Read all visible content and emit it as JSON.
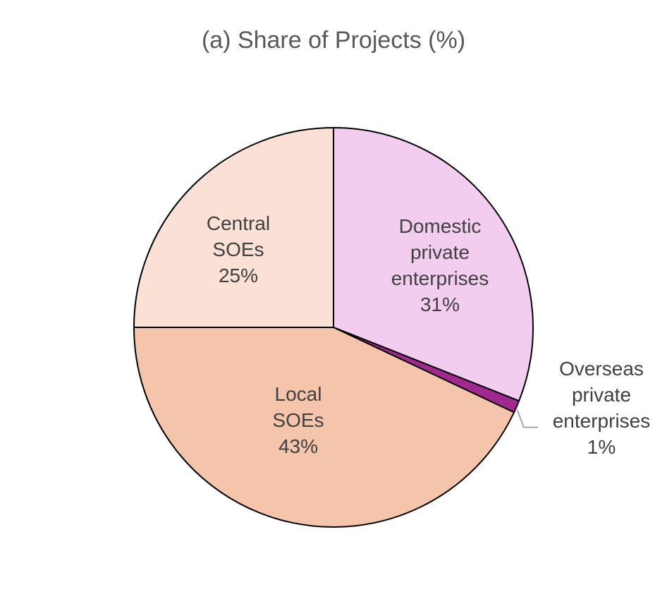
{
  "chart_data": {
    "type": "pie",
    "title": "(a) Share of Projects (%)",
    "slices": [
      {
        "label_lines": [
          "Domestic",
          "private",
          "enterprises"
        ],
        "value_label": "31%",
        "value": 31,
        "color": "#f2cdef"
      },
      {
        "label_lines": [
          "Overseas",
          "private",
          "enterprises"
        ],
        "value_label": "1%",
        "value": 1,
        "color": "#a1288f"
      },
      {
        "label_lines": [
          "Local",
          "SOEs"
        ],
        "value_label": "43%",
        "value": 43,
        "color": "#f5c5ab"
      },
      {
        "label_lines": [
          "Central",
          "SOEs"
        ],
        "value_label": "25%",
        "value": 25,
        "color": "#fbe1d5"
      }
    ],
    "start": "12 o'clock",
    "direction": "clockwise",
    "legend": "none"
  }
}
